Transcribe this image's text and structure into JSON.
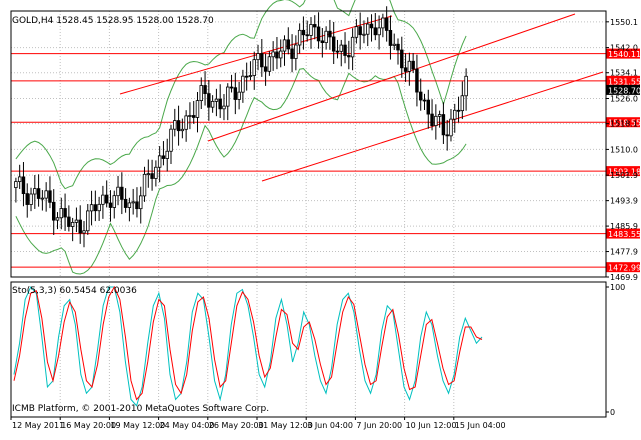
{
  "chart_data": [
    {
      "type": "candlestick",
      "title": "GOLD,H4  1528.45 1528.95 1528.00 1528.70",
      "y_ticks": [
        1550.1,
        1542.0,
        1534.1,
        1526.0,
        1518.1,
        1510.0,
        1501.9,
        1493.9,
        1485.9,
        1477.9,
        1469.9
      ],
      "ylim": [
        1469.9,
        1553.5
      ],
      "price_label": "1528.70",
      "horizontal_levels": [
        {
          "label": "1540.11",
          "value": 1540.11
        },
        {
          "label": "1531.55",
          "value": 1531.55
        },
        {
          "label": "1518.55",
          "value": 1518.55
        },
        {
          "label": "1503.18",
          "value": 1503.18
        },
        {
          "label": "1483.55",
          "value": 1483.55
        },
        {
          "label": "1472.99",
          "value": 1472.99
        }
      ],
      "x_tick_labels": [
        "12 May 2011",
        "16 May 20:00",
        "19 May 12:00",
        "24 May 04:00",
        "26 May 20:00",
        "31 May 12:00",
        "3 Jun 04:00",
        "7 Jun 20:00",
        "10 Jun 12:00",
        "15 Jun 04:00"
      ],
      "bollinger_bands": true,
      "grid": true
    },
    {
      "type": "line",
      "title": "Sto(5,3,3) 60.5454 62.0036",
      "y_ticks": [
        100,
        0
      ],
      "ylim": [
        0,
        100
      ],
      "series": [
        {
          "color": "#00c0c0",
          "values": [
            30,
            55,
            90,
            100,
            95,
            60,
            20,
            25,
            60,
            85,
            90,
            70,
            30,
            15,
            20,
            50,
            85,
            100,
            100,
            80,
            40,
            10,
            5,
            20,
            55,
            85,
            95,
            75,
            30,
            10,
            15,
            40,
            80,
            95,
            90,
            60,
            25,
            10,
            30,
            70,
            95,
            98,
            85,
            60,
            30,
            20,
            40,
            75,
            90,
            70,
            40,
            55,
            80,
            70,
            45,
            25,
            15,
            35,
            70,
            90,
            95,
            80,
            50,
            25,
            15,
            30,
            65,
            85,
            80,
            50,
            20,
            10,
            25,
            60,
            80,
            70,
            45,
            25,
            15,
            30,
            60,
            75,
            65,
            55,
            60
          ]
        },
        {
          "color": "#ff0000",
          "values": [
            25,
            45,
            75,
            95,
            97,
            75,
            40,
            25,
            45,
            72,
            88,
            80,
            50,
            25,
            20,
            38,
            70,
            92,
            100,
            90,
            60,
            25,
            10,
            15,
            40,
            72,
            90,
            85,
            50,
            22,
            15,
            30,
            65,
            88,
            92,
            75,
            42,
            20,
            25,
            55,
            85,
            96,
            90,
            72,
            45,
            28,
            35,
            60,
            82,
            78,
            55,
            50,
            68,
            72,
            58,
            38,
            22,
            28,
            55,
            80,
            92,
            86,
            62,
            38,
            22,
            25,
            52,
            76,
            82,
            62,
            35,
            18,
            20,
            45,
            70,
            74,
            55,
            35,
            22,
            25,
            48,
            68,
            68,
            60,
            58
          ]
        }
      ]
    }
  ],
  "footer": {
    "copyright": "ICMB Platform, © 2001-2010 MetaQuotes Software Corp."
  }
}
